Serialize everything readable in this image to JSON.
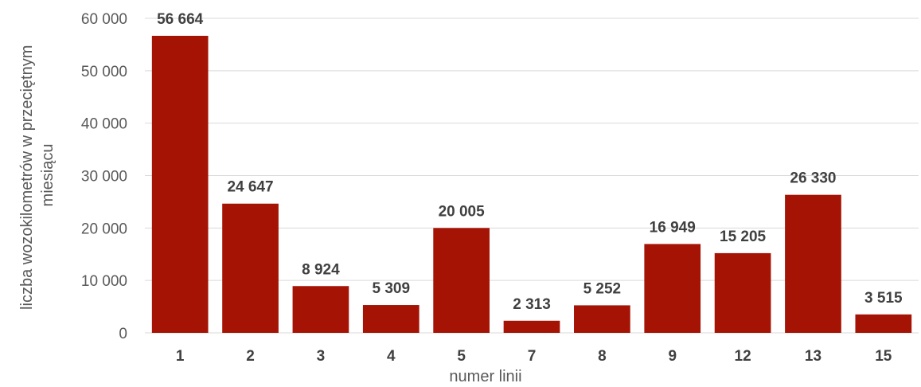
{
  "chart_data": {
    "type": "bar",
    "title": "",
    "xlabel": "numer linii",
    "ylabel": "liczba wozokilometrów w przeciętnym miesiącu",
    "ylim": [
      0,
      60000
    ],
    "yticks": [
      0,
      10000,
      20000,
      30000,
      40000,
      50000,
      60000
    ],
    "ytick_labels": [
      "0",
      "10 000",
      "20 000",
      "30 000",
      "40 000",
      "50 000",
      "60 000"
    ],
    "categories": [
      "1",
      "2",
      "3",
      "4",
      "5",
      "7",
      "8",
      "9",
      "12",
      "13",
      "15"
    ],
    "values": [
      56664,
      24647,
      8924,
      5309,
      20005,
      2313,
      5252,
      16949,
      15205,
      26330,
      3515
    ],
    "data_labels": [
      "56 664",
      "24 647",
      "8 924",
      "5 309",
      "20 005",
      "2 313",
      "5 252",
      "16 949",
      "15 205",
      "26 330",
      "3 515"
    ],
    "grid": true,
    "legend": "none",
    "colors": {
      "bar": "#a51305",
      "grid": "#d9d9d9",
      "text": "#404040"
    }
  }
}
